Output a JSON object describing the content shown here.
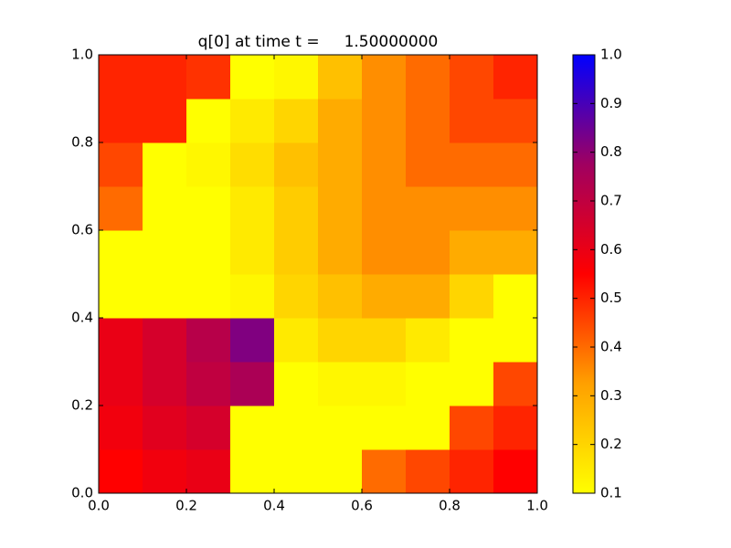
{
  "chart_data": {
    "type": "heatmap",
    "title": "q[0] at time t =     1.50000000",
    "xlim": [
      0,
      1
    ],
    "ylim": [
      0,
      1
    ],
    "xticks": [
      {
        "value": 0,
        "label": "0.0"
      },
      0.2,
      0.4,
      0.6,
      0.8,
      {
        "value": 1,
        "label": "1.0"
      }
    ],
    "yticks": [
      {
        "value": 0,
        "label": "0.0"
      },
      0.2,
      0.4,
      0.6,
      0.8,
      {
        "value": 1,
        "label": "1.0"
      }
    ],
    "z": [
      [
        0.55,
        0.58,
        0.6,
        0.1,
        0.1,
        0.1,
        0.4,
        0.45,
        0.5,
        0.55
      ],
      [
        0.58,
        0.62,
        0.65,
        0.1,
        0.1,
        0.1,
        0.1,
        0.1,
        0.45,
        0.5
      ],
      [
        0.6,
        0.65,
        0.7,
        0.75,
        0.1,
        0.12,
        0.12,
        0.1,
        0.1,
        0.45
      ],
      [
        0.6,
        0.65,
        0.72,
        0.82,
        0.15,
        0.2,
        0.2,
        0.15,
        0.1,
        0.1
      ],
      [
        0.1,
        0.1,
        0.1,
        0.12,
        0.2,
        0.25,
        0.3,
        0.3,
        0.2,
        0.1
      ],
      [
        0.1,
        0.1,
        0.1,
        0.15,
        0.22,
        0.3,
        0.35,
        0.35,
        0.3,
        0.3
      ],
      [
        0.4,
        0.1,
        0.1,
        0.15,
        0.22,
        0.3,
        0.35,
        0.35,
        0.35,
        0.35
      ],
      [
        0.45,
        0.1,
        0.12,
        0.18,
        0.25,
        0.3,
        0.35,
        0.4,
        0.4,
        0.4
      ],
      [
        0.5,
        0.5,
        0.1,
        0.15,
        0.2,
        0.3,
        0.35,
        0.4,
        0.45,
        0.45
      ],
      [
        0.5,
        0.5,
        0.48,
        0.1,
        0.12,
        0.25,
        0.35,
        0.4,
        0.45,
        0.5
      ]
    ],
    "colormap": [
      "#ffff00",
      "#ffa000",
      "#ff0000",
      "#a00060",
      "#0000ff"
    ],
    "zlim": [
      0.1,
      1
    ],
    "zticks": [
      0.1,
      0.2,
      0.3,
      0.4,
      0.5,
      0.6,
      0.7,
      0.8,
      0.9,
      {
        "value": 1,
        "label": "1.0"
      }
    ]
  }
}
